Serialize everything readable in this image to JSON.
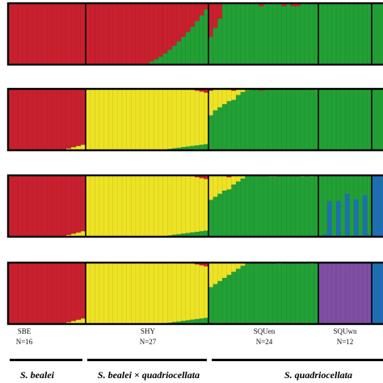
{
  "chart_data": {
    "type": "bar",
    "layout": "stacked ancestry barplots, one panel per K",
    "panels": 4,
    "colors": {
      "red": "#c8202e",
      "green": "#22a035",
      "yellow": "#eee225",
      "blue": "#1f6fb5",
      "purple": "#7e4fa3"
    },
    "populations": [
      {
        "name": "SBE",
        "n_label": "N=16",
        "n": 16
      },
      {
        "name": "SHY",
        "n_label": "N=27",
        "n": 27
      },
      {
        "name": "SQUen",
        "n_label": "N=24",
        "n": 24
      },
      {
        "name": "SQUwn",
        "n_label": "N=12",
        "n": 12
      },
      {
        "name": "",
        "n_label": "",
        "n": 4
      }
    ],
    "species_groups": [
      {
        "label": "S. bealei",
        "populations": [
          "SBE"
        ]
      },
      {
        "label": "S. bealei × quadriocellata",
        "populations": [
          "SHY"
        ]
      },
      {
        "label": "S. quadriocellata",
        "populations": [
          "SQUen",
          "SQUwn"
        ]
      }
    ],
    "series_by_panel": [
      [
        "red",
        "green"
      ],
      [
        "red",
        "yellow",
        "green"
      ],
      [
        "red",
        "yellow",
        "green",
        "blue"
      ],
      [
        "red",
        "yellow",
        "green",
        "purple",
        "blue"
      ]
    ]
  }
}
